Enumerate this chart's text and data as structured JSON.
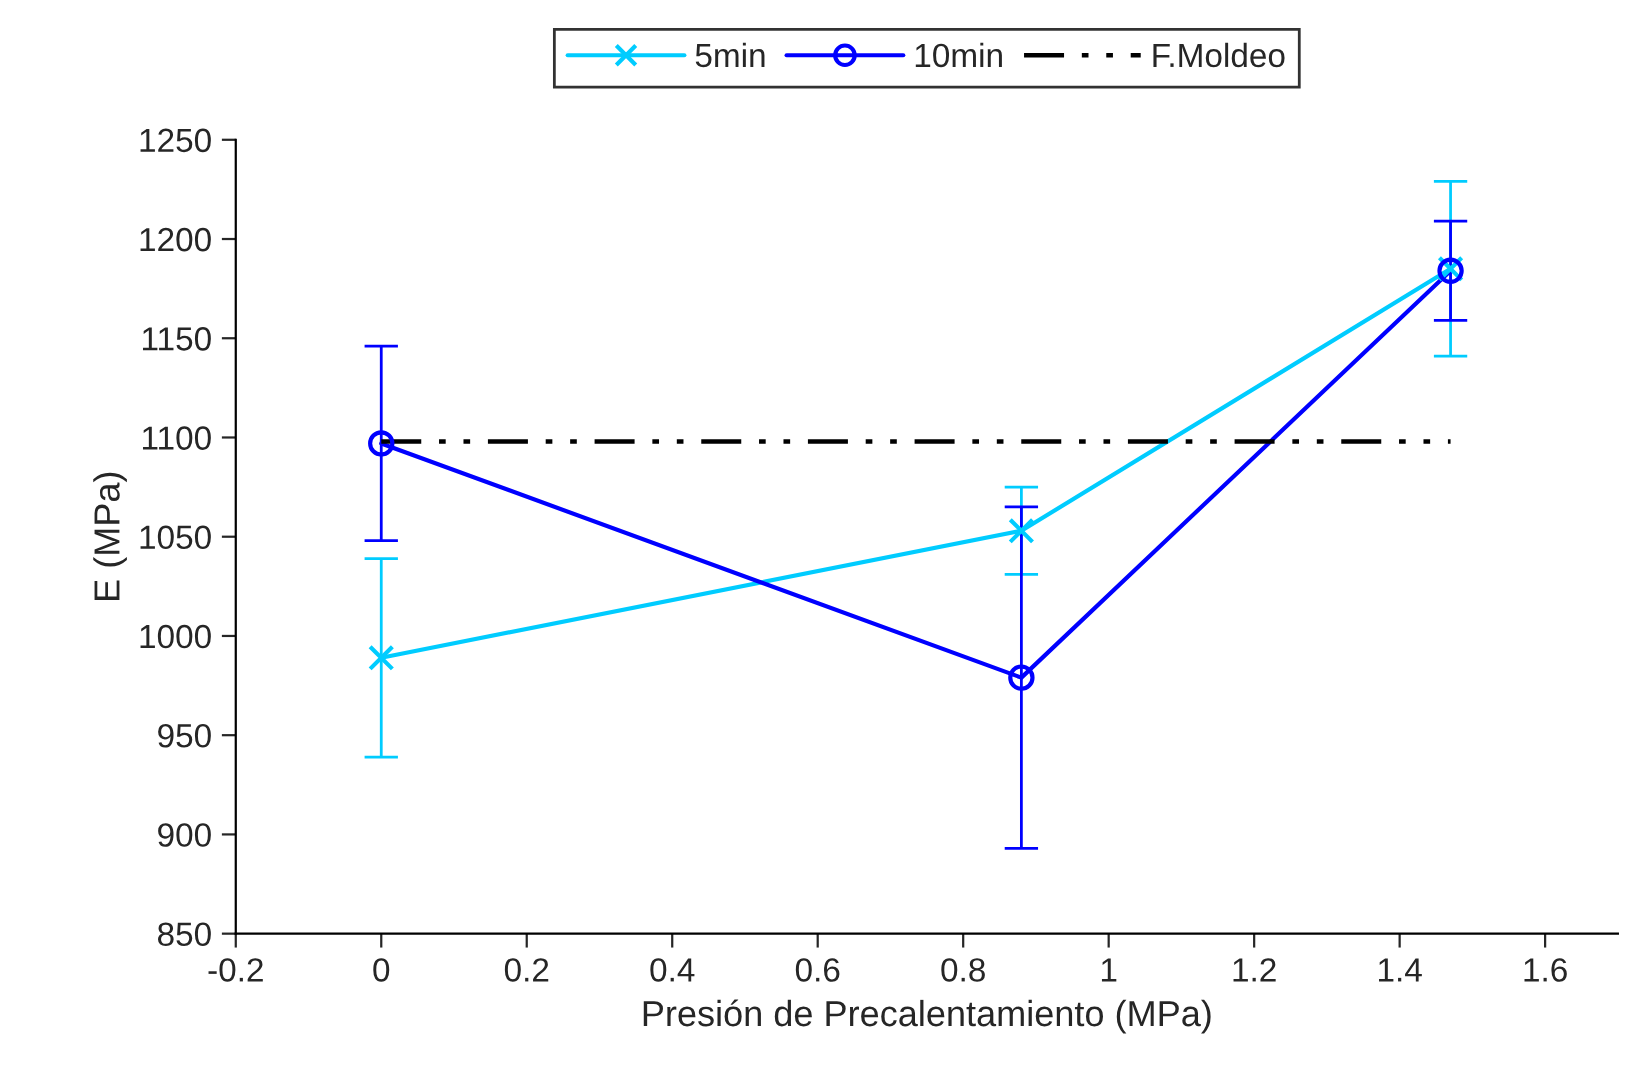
{
  "chart_data": {
    "type": "line",
    "xlabel": "Presión de Precalentamiento (MPa)",
    "ylabel": "E (MPa)",
    "xlim": [
      -0.2,
      1.7
    ],
    "xticks": [
      -0.2,
      0,
      0.2,
      0.4,
      0.6,
      0.8,
      1,
      1.2,
      1.4,
      1.6
    ],
    "ylim": [
      850,
      1250
    ],
    "yticks": [
      850,
      900,
      950,
      1000,
      1050,
      1100,
      1150,
      1200,
      1250
    ],
    "grid": false,
    "legend": "top",
    "series": [
      {
        "name": "5min",
        "color": "#00ccff",
        "x": [
          0,
          0.88,
          1.47
        ],
        "values": [
          989,
          1053,
          1185
        ],
        "errors": [
          50,
          22,
          44
        ],
        "marker": "cross",
        "line_style": "solid"
      },
      {
        "name": "10min",
        "color": "#0000ff",
        "x": [
          0,
          0.88,
          1.47
        ],
        "values": [
          1097,
          979,
          1184
        ],
        "errors": [
          49,
          86,
          25
        ],
        "marker": "circle",
        "line_style": "solid"
      },
      {
        "name": "F.Moldeo",
        "color": "#000000",
        "x": [
          0,
          1.47
        ],
        "values": [
          1098,
          1098
        ],
        "marker": "none",
        "line_style": "dashed"
      }
    ]
  }
}
